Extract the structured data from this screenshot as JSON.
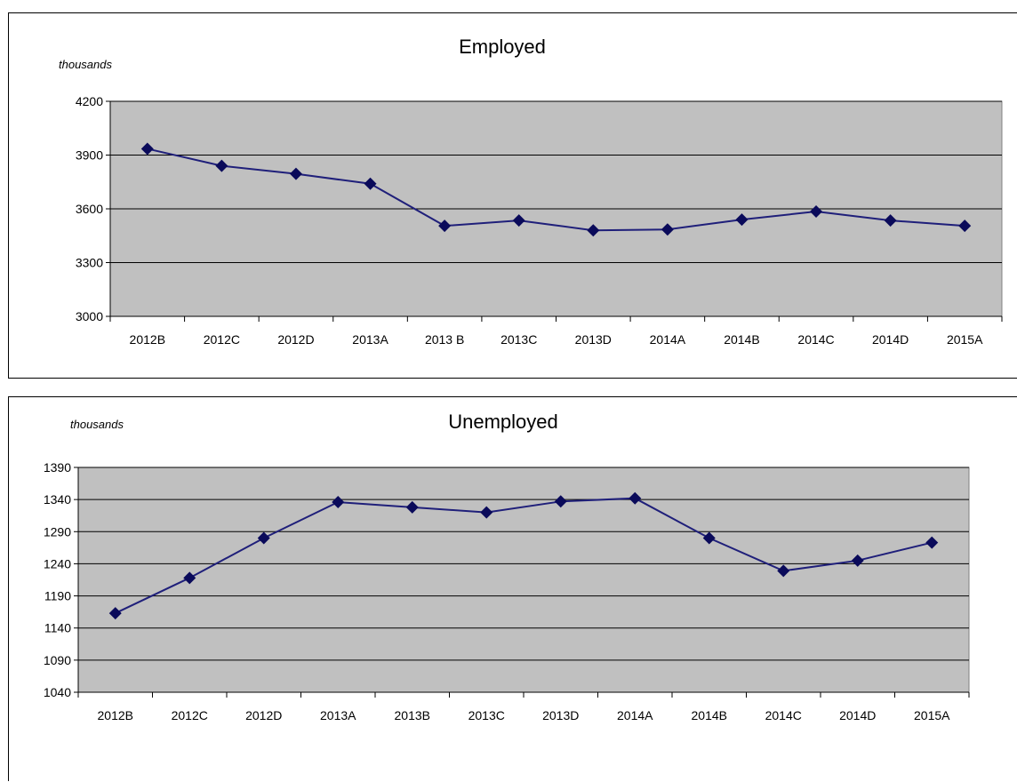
{
  "chart_data": [
    {
      "type": "line",
      "title": "Employed",
      "unit_label": "thousands",
      "xlabel": "",
      "ylabel": "",
      "categories": [
        "2012B",
        "2012C",
        "2012D",
        "2013A",
        "2013 B",
        "2013C",
        "2013D",
        "2014A",
        "2014B",
        "2014C",
        "2014D",
        "2015A"
      ],
      "series": [
        {
          "values": [
            3935,
            3840,
            3795,
            3740,
            3505,
            3535,
            3480,
            3485,
            3540,
            3585,
            3535,
            3505
          ]
        }
      ],
      "ylim": [
        3000,
        4200
      ],
      "yticks": [
        3000,
        3300,
        3600,
        3900,
        4200
      ],
      "grid": true,
      "legend": "none",
      "colors": {
        "line": "#1f1f7a",
        "marker": "#0a0a5a",
        "plot_bg": "#c0c0c0",
        "grid": "#000000"
      }
    },
    {
      "type": "line",
      "title": "Unemployed",
      "unit_label": "thousands",
      "xlabel": "",
      "ylabel": "",
      "categories": [
        "2012B",
        "2012C",
        "2012D",
        "2013A",
        "2013B",
        "2013C",
        "2013D",
        "2014A",
        "2014B",
        "2014C",
        "2014D",
        "2015A"
      ],
      "series": [
        {
          "values": [
            1163,
            1218,
            1280,
            1336,
            1328,
            1320,
            1337,
            1342,
            1280,
            1229,
            1245,
            1273
          ]
        }
      ],
      "ylim": [
        1040,
        1390
      ],
      "yticks": [
        1040,
        1090,
        1140,
        1190,
        1240,
        1290,
        1340,
        1390
      ],
      "grid": true,
      "legend": "none",
      "colors": {
        "line": "#1f1f7a",
        "marker": "#0a0a5a",
        "plot_bg": "#c0c0c0",
        "grid": "#000000"
      }
    }
  ]
}
